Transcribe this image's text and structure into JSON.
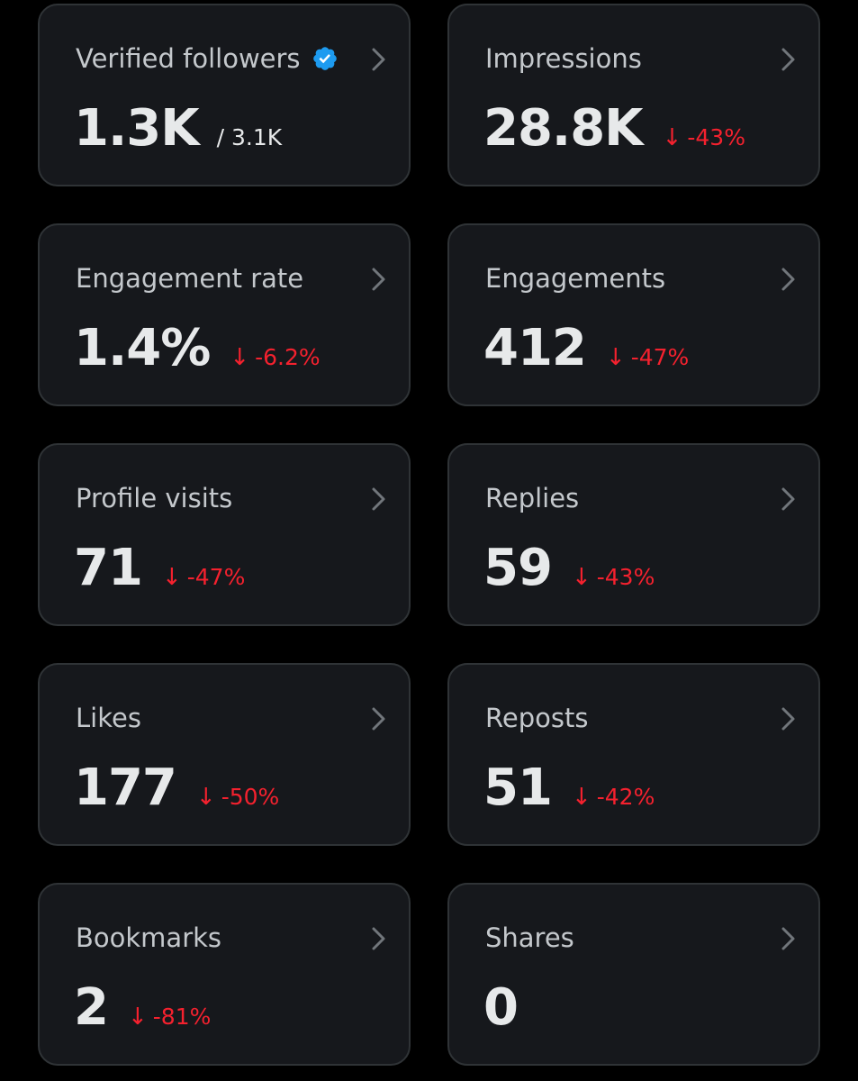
{
  "colors": {
    "background": "#000000",
    "card": "#16181c",
    "border": "#2f3336",
    "label": "#c4c8cc",
    "value": "#e7e9ea",
    "negative": "#f4212e",
    "verified": "#1d9bf0"
  },
  "cards": [
    {
      "label": "Verified followers",
      "value": "1.3K",
      "sub": "/ 3.1K",
      "icon": "verified-badge-icon"
    },
    {
      "label": "Impressions",
      "value": "28.8K",
      "change": "-43%",
      "direction": "down"
    },
    {
      "label": "Engagement rate",
      "value": "1.4%",
      "change": "-6.2%",
      "direction": "down"
    },
    {
      "label": "Engagements",
      "value": "412",
      "change": "-47%",
      "direction": "down"
    },
    {
      "label": "Profile visits",
      "value": "71",
      "change": "-47%",
      "direction": "down"
    },
    {
      "label": "Replies",
      "value": "59",
      "change": "-43%",
      "direction": "down"
    },
    {
      "label": "Likes",
      "value": "177",
      "change": "-50%",
      "direction": "down"
    },
    {
      "label": "Reposts",
      "value": "51",
      "change": "-42%",
      "direction": "down"
    },
    {
      "label": "Bookmarks",
      "value": "2",
      "change": "-81%",
      "direction": "down"
    },
    {
      "label": "Shares",
      "value": "0"
    }
  ]
}
